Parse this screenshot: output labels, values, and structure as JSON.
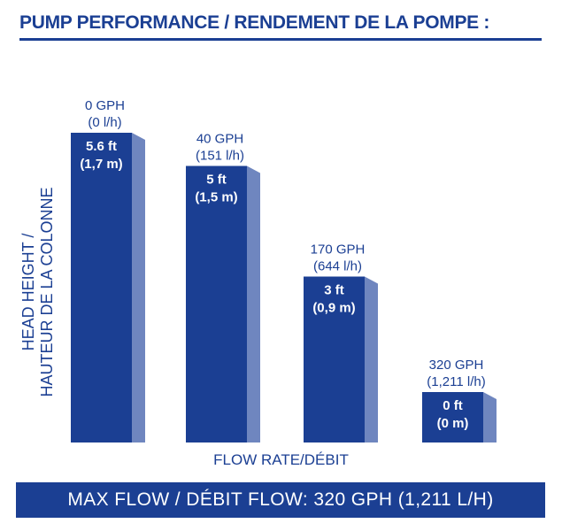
{
  "title": "PUMP PERFORMANCE / RENDEMENT DE LA POMPE :",
  "footer": "MAX FLOW / DÉBIT FLOW: 320 GPH (1,211 L/H)",
  "colors": {
    "bar": "#1b3f93",
    "bar_side": "#6f86bf",
    "text": "#1b3f93",
    "background": "#ffffff"
  },
  "chart_data": {
    "type": "bar",
    "title": "PUMP PERFORMANCE / RENDEMENT DE LA POMPE :",
    "xlabel": "FLOW RATE/DÉBIT",
    "ylabel_lines": [
      "HEAD HEIGHT /",
      "HAUTEUR DE LA COLONNE"
    ],
    "categories": [
      "0 GPH (0 l/h)",
      "40 GPH (151 l/h)",
      "170 GPH (644 l/h)",
      "320 GPH (1,211 l/h)"
    ],
    "flow_labels": [
      [
        "0 GPH",
        "(0 l/h)"
      ],
      [
        "40 GPH",
        "(151 l/h)"
      ],
      [
        "170 GPH",
        "(644 l/h)"
      ],
      [
        "320 GPH",
        "(1,211 l/h)"
      ]
    ],
    "values": [
      5.6,
      5,
      3,
      0
    ],
    "value_labels": [
      [
        "5.6 ft",
        "(1,7 m)"
      ],
      [
        "5 ft",
        "(1,5 m)"
      ],
      [
        "3 ft",
        "(0,9 m)"
      ],
      [
        "0 ft",
        "(0 m)"
      ]
    ],
    "grid": false,
    "legend": "none"
  }
}
